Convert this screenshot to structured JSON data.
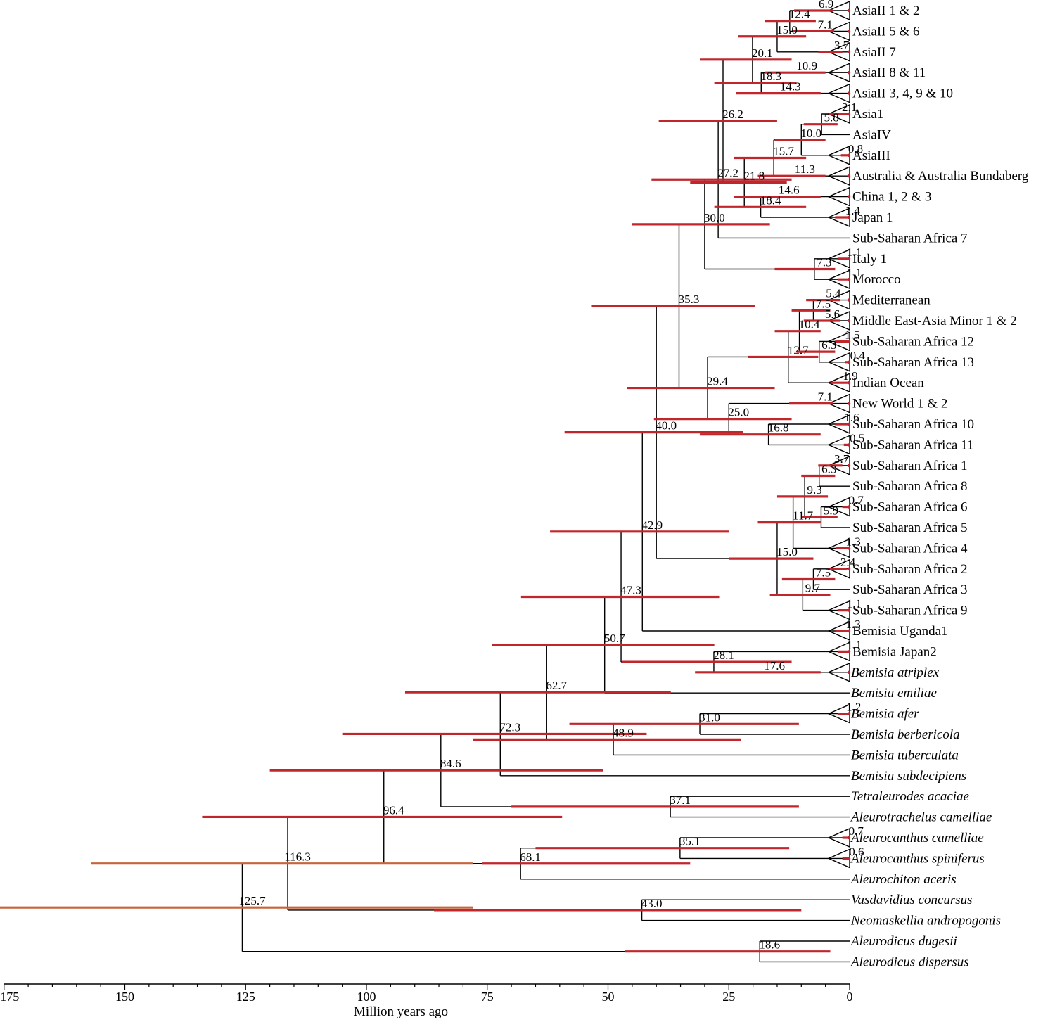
{
  "axis": {
    "label": "Million years ago",
    "min": 0,
    "max": 175,
    "ticks": [
      "175",
      "150",
      "125",
      "100",
      "75",
      "50",
      "25",
      "0"
    ]
  },
  "colors": {
    "branch": "#000000",
    "hpd": "#c0262b",
    "hpd_root": "#c8643c"
  },
  "tips": [
    {
      "label": "AsiaII 1 & 2",
      "italic": false,
      "collapsed": true
    },
    {
      "label": "AsiaII 5 & 6",
      "italic": false,
      "collapsed": true
    },
    {
      "label": "AsiaII 7",
      "italic": false,
      "collapsed": true
    },
    {
      "label": "AsiaII 8 & 11",
      "italic": false,
      "collapsed": true
    },
    {
      "label": "AsiaII 3, 4, 9 & 10",
      "italic": false,
      "collapsed": true
    },
    {
      "label": "Asia1",
      "italic": false,
      "collapsed": true
    },
    {
      "label": "AsiaIV",
      "italic": false,
      "collapsed": false
    },
    {
      "label": "AsiaIII",
      "italic": false,
      "collapsed": true
    },
    {
      "label": "Australia & Australia Bundaberg",
      "italic": false,
      "collapsed": true
    },
    {
      "label": "China 1, 2 & 3",
      "italic": false,
      "collapsed": true
    },
    {
      "label": "Japan 1",
      "italic": false,
      "collapsed": true
    },
    {
      "label": "Sub-Saharan Africa 7",
      "italic": false,
      "collapsed": false
    },
    {
      "label": "Italy 1",
      "italic": false,
      "collapsed": true
    },
    {
      "label": "Morocco",
      "italic": false,
      "collapsed": true
    },
    {
      "label": "Mediterranean",
      "italic": false,
      "collapsed": true
    },
    {
      "label": "Middle East-Asia Minor 1 & 2",
      "italic": false,
      "collapsed": true
    },
    {
      "label": "Sub-Saharan Africa 12",
      "italic": false,
      "collapsed": true
    },
    {
      "label": "Sub-Saharan Africa 13",
      "italic": false,
      "collapsed": true
    },
    {
      "label": "Indian Ocean",
      "italic": false,
      "collapsed": true
    },
    {
      "label": "New World 1 & 2",
      "italic": false,
      "collapsed": true
    },
    {
      "label": "Sub-Saharan Africa 10",
      "italic": false,
      "collapsed": true
    },
    {
      "label": "Sub-Saharan Africa 11",
      "italic": false,
      "collapsed": true
    },
    {
      "label": "Sub-Saharan Africa 1",
      "italic": false,
      "collapsed": true
    },
    {
      "label": "Sub-Saharan Africa 8",
      "italic": false,
      "collapsed": false
    },
    {
      "label": "Sub-Saharan Africa 6",
      "italic": false,
      "collapsed": true
    },
    {
      "label": "Sub-Saharan Africa 5",
      "italic": false,
      "collapsed": false
    },
    {
      "label": "Sub-Saharan Africa 4",
      "italic": false,
      "collapsed": true
    },
    {
      "label": "Sub-Saharan Africa 2",
      "italic": false,
      "collapsed": true
    },
    {
      "label": "Sub-Saharan Africa 3",
      "italic": false,
      "collapsed": false
    },
    {
      "label": "Sub-Saharan Africa 9",
      "italic": false,
      "collapsed": true
    },
    {
      "label": "Bemisia Uganda1",
      "italic": false,
      "collapsed": true
    },
    {
      "label": "Bemisia Japan2",
      "italic": false,
      "collapsed": true
    },
    {
      "label": "Bemisia atriplex",
      "italic": true,
      "collapsed": true
    },
    {
      "label": "Bemisia emiliae",
      "italic": true,
      "collapsed": false
    },
    {
      "label": "Bemisia afer",
      "italic": true,
      "collapsed": true
    },
    {
      "label": "Bemisia berbericola",
      "italic": true,
      "collapsed": false
    },
    {
      "label": "Bemisia tuberculata",
      "italic": true,
      "collapsed": false
    },
    {
      "label": "Bemisia subdecipiens",
      "italic": true,
      "collapsed": false
    },
    {
      "label": "Tetraleurodes acaciae",
      "italic": true,
      "collapsed": false
    },
    {
      "label": "Aleurotrachelus camelliae",
      "italic": true,
      "collapsed": false
    },
    {
      "label": "Aleurocanthus camelliae",
      "italic": true,
      "collapsed": true
    },
    {
      "label": "Aleurocanthus spiniferus",
      "italic": true,
      "collapsed": true
    },
    {
      "label": "Aleurochiton aceris",
      "italic": true,
      "collapsed": false
    },
    {
      "label": "Vasdavidius concursus",
      "italic": true,
      "collapsed": false
    },
    {
      "label": "Neomaskellia andropogonis",
      "italic": true,
      "collapsed": false
    },
    {
      "label": "Aleurodicus dugesii",
      "italic": true,
      "collapsed": false
    },
    {
      "label": "Aleurodicus dispersus",
      "italic": true,
      "collapsed": false
    }
  ],
  "clades": [
    {
      "age": "6.9",
      "mya": 6.9,
      "children": [
        "t0"
      ],
      "hpd": [
        3.5,
        11.5
      ]
    },
    {
      "age": "7.1",
      "mya": 7.1,
      "children": [
        "t1"
      ],
      "hpd": [
        3.2,
        11.8
      ]
    },
    {
      "age": "12.4",
      "mya": 12.4,
      "children": [
        "n0",
        "n1"
      ],
      "hpd": [
        7,
        17.5
      ]
    },
    {
      "age": "3.7",
      "mya": 3.7,
      "children": [
        "t2"
      ],
      "hpd": [
        1.5,
        6.5
      ]
    },
    {
      "age": "15.0",
      "mya": 15.0,
      "children": [
        "n2",
        "n3"
      ],
      "hpd": [
        9,
        23
      ]
    },
    {
      "age": "10.9",
      "mya": 10.9,
      "children": [
        "t3"
      ],
      "hpd": [
        5,
        17.5
      ]
    },
    {
      "age": "14.3",
      "mya": 14.3,
      "children": [
        "t4"
      ],
      "hpd": [
        6,
        23.5
      ]
    },
    {
      "age": "18.3",
      "mya": 18.3,
      "children": [
        "n5",
        "n6"
      ],
      "hpd": [
        11,
        28
      ]
    },
    {
      "age": "20.1",
      "mya": 20.1,
      "children": [
        "n4",
        "n7"
      ],
      "hpd": [
        12,
        31
      ]
    },
    {
      "age": "2.1",
      "mya": 2.1,
      "children": [
        "t5"
      ],
      "hpd": [
        0.5,
        4.5
      ]
    },
    {
      "age": "5.8",
      "mya": 5.8,
      "children": [
        "n9",
        "t6"
      ],
      "hpd": [
        2.5,
        9.5
      ]
    },
    {
      "age": "0.8",
      "mya": 0.8,
      "children": [
        "t7"
      ],
      "hpd": [
        0.1,
        1.8
      ]
    },
    {
      "age": "10.0",
      "mya": 10.0,
      "children": [
        "n10",
        "n11"
      ],
      "hpd": [
        5,
        15.5
      ]
    },
    {
      "age": "11.3",
      "mya": 11.3,
      "children": [
        "t8"
      ],
      "hpd": [
        5,
        19
      ]
    },
    {
      "age": "15.7",
      "mya": 15.7,
      "children": [
        "n12",
        "n13"
      ],
      "hpd": [
        9,
        24
      ]
    },
    {
      "age": "1.4",
      "mya": 1.4,
      "children": [
        "t10"
      ],
      "hpd": [
        0.3,
        3
      ]
    },
    {
      "age": "14.6",
      "mya": 14.6,
      "children": [
        "t9"
      ],
      "hpd": [
        6,
        24
      ]
    },
    {
      "age": "18.4",
      "mya": 18.4,
      "children": [
        "n16",
        "n15"
      ],
      "hpd": [
        9,
        28
      ]
    },
    {
      "age": "21.8",
      "mya": 21.8,
      "children": [
        "n14",
        "n17"
      ],
      "hpd": [
        13,
        33
      ]
    },
    {
      "age": "26.2",
      "mya": 26.2,
      "children": [
        "n8",
        "n18"
      ],
      "hpd": [
        15,
        39.5
      ]
    },
    {
      "age": "27.2",
      "mya": 27.2,
      "children": [
        "n19",
        "t11"
      ],
      "hpd": [
        12,
        41
      ]
    },
    {
      "age": "1.1",
      "mya": 1.1,
      "children": [
        "t12"
      ],
      "hpd": [
        0.2,
        2.5
      ]
    },
    {
      "age": "1.1",
      "mya": 1.1,
      "children": [
        "t13"
      ],
      "hpd": [
        0.2,
        2.5
      ]
    },
    {
      "age": "7.3",
      "mya": 7.3,
      "children": [
        "n21",
        "n22"
      ],
      "hpd": [
        3,
        15.5
      ]
    },
    {
      "age": "30.0",
      "mya": 30.0,
      "children": [
        "n20",
        "n23"
      ],
      "hpd": [
        16.5,
        45
      ]
    },
    {
      "age": "5.4",
      "mya": 5.4,
      "children": [
        "t14"
      ],
      "hpd": [
        2,
        9
      ]
    },
    {
      "age": "5.6",
      "mya": 5.6,
      "children": [
        "t15"
      ],
      "hpd": [
        2,
        9.5
      ]
    },
    {
      "age": "7.5",
      "mya": 7.5,
      "children": [
        "n25",
        "n26"
      ],
      "hpd": [
        4,
        12
      ]
    },
    {
      "age": "1.5",
      "mya": 1.5,
      "children": [
        "t16"
      ],
      "hpd": [
        0.3,
        3
      ]
    },
    {
      "age": "0.4",
      "mya": 0.4,
      "children": [
        "t17"
      ],
      "hpd": [
        0.05,
        1
      ]
    },
    {
      "age": "6.3",
      "mya": 6.3,
      "children": [
        "n28",
        "n29"
      ],
      "hpd": [
        3,
        11
      ]
    },
    {
      "age": "10.4",
      "mya": 10.4,
      "children": [
        "n27",
        "n30"
      ],
      "hpd": [
        6,
        15.5
      ]
    },
    {
      "age": "1.9",
      "mya": 1.9,
      "children": [
        "t18"
      ],
      "hpd": [
        0.3,
        4
      ]
    },
    {
      "age": "12.7",
      "mya": 12.7,
      "children": [
        "n31",
        "n32"
      ],
      "hpd": [
        6.5,
        21
      ]
    },
    {
      "age": "7.1",
      "mya": 7.1,
      "children": [
        "t19"
      ],
      "hpd": [
        3.5,
        12.5
      ]
    },
    {
      "age": "1.6",
      "mya": 1.6,
      "children": [
        "t20"
      ],
      "hpd": [
        0.3,
        3
      ]
    },
    {
      "age": "0.5",
      "mya": 0.5,
      "children": [
        "t21"
      ],
      "hpd": [
        0.05,
        1.2
      ]
    },
    {
      "age": "16.8",
      "mya": 16.8,
      "children": [
        "n35",
        "n36"
      ],
      "hpd": [
        6,
        31
      ]
    },
    {
      "age": "25.0",
      "mya": 25.0,
      "children": [
        "n34",
        "n37"
      ],
      "hpd": [
        12,
        40.5
      ]
    },
    {
      "age": "29.4",
      "mya": 29.4,
      "children": [
        "n33",
        "n38"
      ],
      "hpd": [
        15.5,
        46
      ]
    },
    {
      "age": "35.3",
      "mya": 35.3,
      "children": [
        "n24",
        "n39"
      ],
      "hpd": [
        19.5,
        53.5
      ]
    },
    {
      "age": "3.7",
      "mya": 3.7,
      "children": [
        "t22"
      ],
      "hpd": [
        1.5,
        6.5
      ]
    },
    {
      "age": "6.3",
      "mya": 6.3,
      "children": [
        "n41",
        "t23"
      ],
      "hpd": [
        3,
        10
      ]
    },
    {
      "age": "0.7",
      "mya": 0.7,
      "children": [
        "t24"
      ],
      "hpd": [
        0.1,
        1.5
      ]
    },
    {
      "age": "5.9",
      "mya": 5.9,
      "children": [
        "n43",
        "t25"
      ],
      "hpd": [
        2.5,
        10
      ]
    },
    {
      "age": "9.3",
      "mya": 9.3,
      "children": [
        "n42",
        "n44"
      ],
      "hpd": [
        4.5,
        15
      ]
    },
    {
      "age": "1.3",
      "mya": 1.3,
      "children": [
        "t26"
      ],
      "hpd": [
        0.2,
        2.8
      ]
    },
    {
      "age": "11.7",
      "mya": 11.7,
      "children": [
        "n45",
        "n46"
      ],
      "hpd": [
        6,
        19
      ]
    },
    {
      "age": "2.4",
      "mya": 2.4,
      "children": [
        "t27"
      ],
      "hpd": [
        0.6,
        4.5
      ]
    },
    {
      "age": "7.5",
      "mya": 7.5,
      "children": [
        "n48",
        "t28"
      ],
      "hpd": [
        3,
        14
      ]
    },
    {
      "age": "1.1",
      "mya": 1.1,
      "children": [
        "t29"
      ],
      "hpd": [
        0.2,
        2.5
      ]
    },
    {
      "age": "9.7",
      "mya": 9.7,
      "children": [
        "n49",
        "n50"
      ],
      "hpd": [
        4,
        16.5
      ]
    },
    {
      "age": "15.0",
      "mya": 15.0,
      "children": [
        "n47",
        "n51"
      ],
      "hpd": [
        7.5,
        25
      ]
    },
    {
      "age": "40.0",
      "mya": 40.0,
      "children": [
        "n40",
        "n52"
      ],
      "hpd": [
        22,
        59
      ]
    },
    {
      "age": "1.3",
      "mya": 1.3,
      "children": [
        "t30"
      ],
      "hpd": [
        0.2,
        2.8
      ]
    },
    {
      "age": "42.9",
      "mya": 42.9,
      "children": [
        "n53",
        "n54"
      ],
      "hpd": [
        25,
        62
      ]
    },
    {
      "age": "1.1",
      "mya": 1.1,
      "children": [
        "t31"
      ],
      "hpd": [
        0.2,
        2.5
      ]
    },
    {
      "age": "17.6",
      "mya": 17.6,
      "children": [
        "t32"
      ],
      "hpd": [
        6,
        32
      ]
    },
    {
      "age": "28.1",
      "mya": 28.1,
      "children": [
        "n56",
        "n57"
      ],
      "hpd": [
        12,
        47
      ]
    },
    {
      "age": "47.3",
      "mya": 47.3,
      "children": [
        "n55",
        "n58"
      ],
      "hpd": [
        27,
        68
      ]
    },
    {
      "age": "50.7",
      "mya": 50.7,
      "children": [
        "n59",
        "t33"
      ],
      "hpd": [
        28,
        74
      ]
    },
    {
      "age": "1.2",
      "mya": 1.2,
      "children": [
        "t34"
      ],
      "hpd": [
        0.2,
        2.5
      ]
    },
    {
      "age": "31.0",
      "mya": 31.0,
      "children": [
        "n61",
        "t35"
      ],
      "hpd": [
        10.5,
        58
      ]
    },
    {
      "age": "48.9",
      "mya": 48.9,
      "children": [
        "n62",
        "t36"
      ],
      "hpd": [
        22.5,
        78
      ]
    },
    {
      "age": "62.7",
      "mya": 62.7,
      "children": [
        "n60",
        "n63"
      ],
      "hpd": [
        37,
        92
      ]
    },
    {
      "age": "72.3",
      "mya": 72.3,
      "children": [
        "n64",
        "t37"
      ],
      "hpd": [
        42,
        105
      ]
    },
    {
      "age": "37.1",
      "mya": 37.1,
      "children": [
        "t38",
        "t39"
      ],
      "hpd": [
        10.5,
        70
      ]
    },
    {
      "age": "84.6",
      "mya": 84.6,
      "children": [
        "n65",
        "n66"
      ],
      "hpd": [
        51,
        120
      ]
    },
    {
      "age": "0.7",
      "mya": 0.7,
      "children": [
        "t40"
      ],
      "hpd": [
        0.1,
        1.5
      ]
    },
    {
      "age": "0.6",
      "mya": 0.6,
      "children": [
        "t41"
      ],
      "hpd": [
        0.1,
        1.5
      ]
    },
    {
      "age": "35.1",
      "mya": 35.1,
      "children": [
        "n68",
        "n69"
      ],
      "hpd": [
        12.5,
        65
      ]
    },
    {
      "age": "68.1",
      "mya": 68.1,
      "children": [
        "n70",
        "t42"
      ],
      "hpd": [
        33,
        76
      ]
    },
    {
      "age": "96.4",
      "mya": 96.4,
      "children": [
        "n67",
        "n71"
      ],
      "hpd": [
        59.5,
        134
      ]
    },
    {
      "age": "43.0",
      "mya": 43.0,
      "children": [
        "t43",
        "t44"
      ],
      "hpd": [
        10,
        86
      ]
    },
    {
      "age": "116.3",
      "mya": 116.3,
      "children": [
        "n72",
        "n73"
      ],
      "hpd": [
        78,
        157
      ],
      "root": true
    },
    {
      "age": "18.6",
      "mya": 18.6,
      "children": [
        "t45",
        "t46"
      ],
      "hpd": [
        4,
        46.5
      ]
    },
    {
      "age": "125.7",
      "mya": 125.7,
      "children": [
        "n74",
        "n75"
      ],
      "hpd": [
        78,
        179
      ],
      "root": true
    }
  ]
}
